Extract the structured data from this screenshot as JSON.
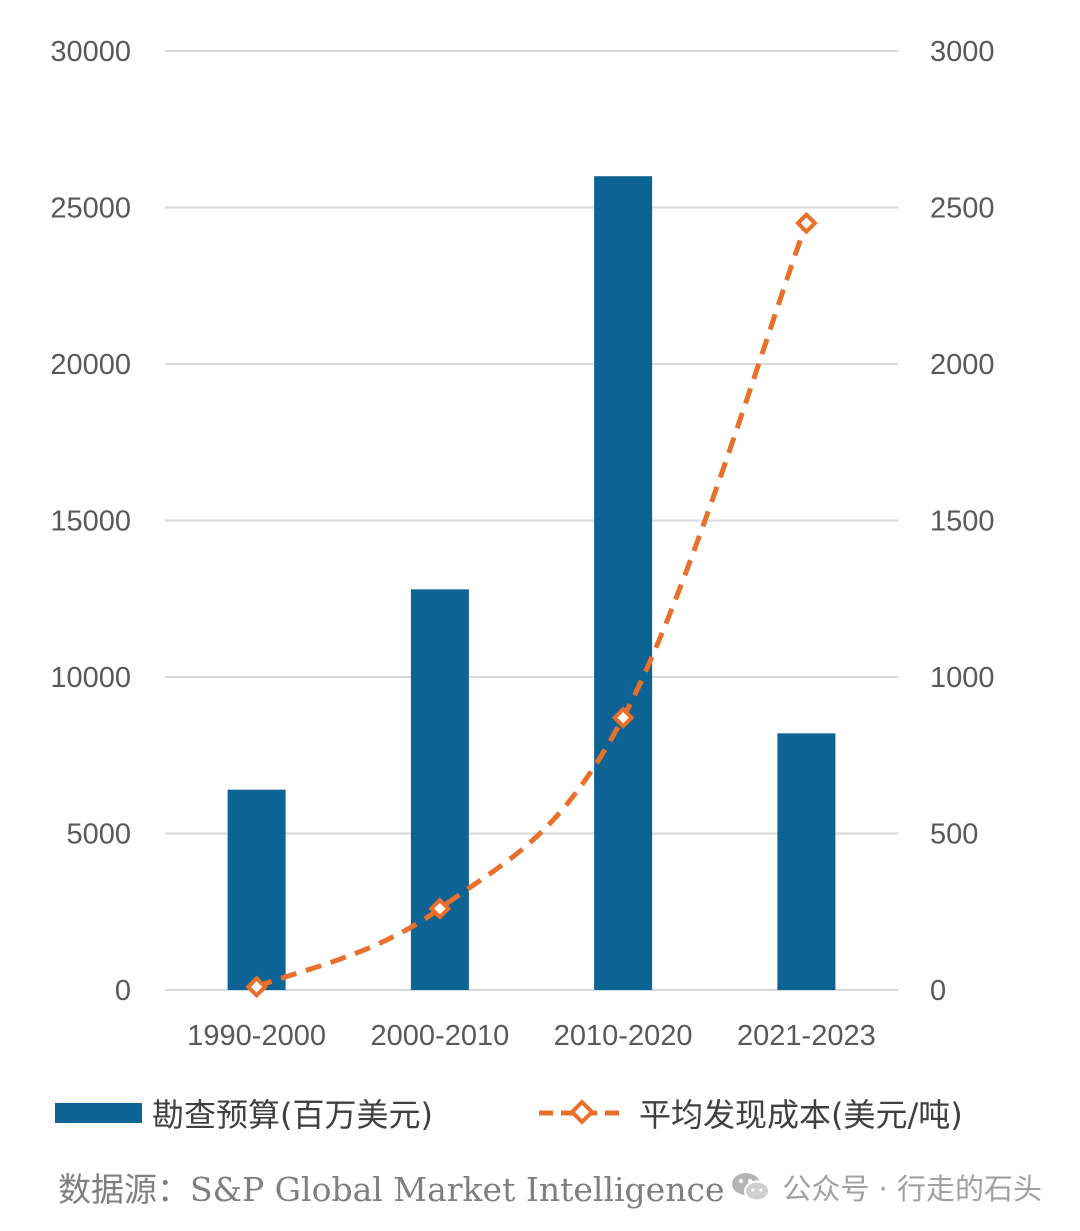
{
  "chart_data": {
    "type": "bar",
    "categories": [
      "1990-2000",
      "2000-2010",
      "2010-2020",
      "2021-2023"
    ],
    "series": [
      {
        "name": "勘查预算(百万美元)",
        "type": "bar",
        "axis": "left",
        "color": "#0d6394",
        "values": [
          6400,
          12800,
          26000,
          8200
        ]
      },
      {
        "name": "平均发现成本(美元/吨)",
        "type": "line",
        "axis": "right",
        "color": "#e8702a",
        "line_style": "dashed",
        "marker": "diamond",
        "values": [
          10,
          260,
          870,
          2450
        ]
      }
    ],
    "left_axis": {
      "ylim": [
        0,
        30000
      ],
      "ticks": [
        "0",
        "5000",
        "10000",
        "15000",
        "20000",
        "25000",
        "30000"
      ]
    },
    "right_axis": {
      "ylim": [
        0,
        3000
      ],
      "ticks": [
        "0",
        "500",
        "1000",
        "1500",
        "2000",
        "2500",
        "3000"
      ]
    },
    "grid": true,
    "legend_position": "bottom"
  },
  "source_note": "数据源：S&P Global Market Intelligence",
  "watermark": "公众号 · 行走的石头"
}
